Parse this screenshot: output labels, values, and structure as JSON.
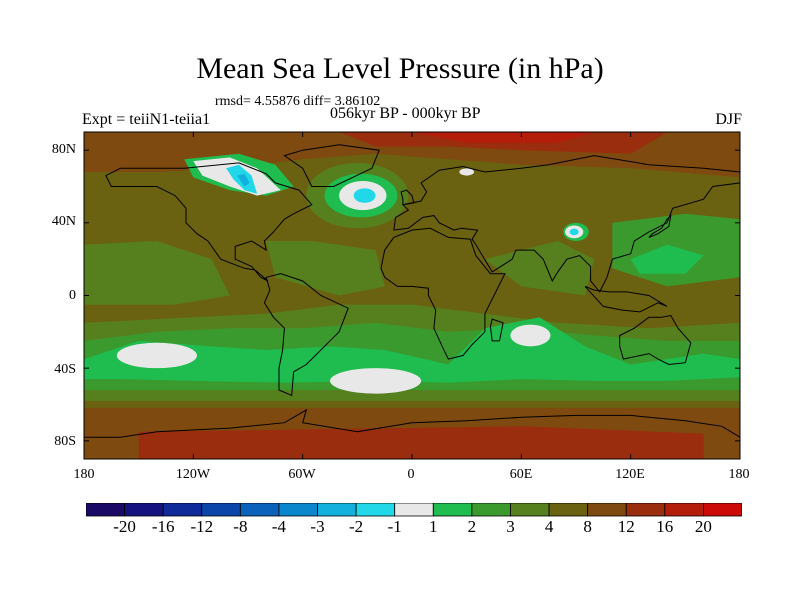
{
  "title": "Mean Sea Level Pressure (in hPa)",
  "stats": "rmsd= 4.55876 diff= 3.86102",
  "experiment": "Expt = teiiN1-teiia1",
  "period": "056kyr BP - 000kyr BP",
  "season": "DJF",
  "lat_labels": [
    "80N",
    "40N",
    "0",
    "40S",
    "80S"
  ],
  "lon_labels": [
    "180",
    "120W",
    "60W",
    "0",
    "60E",
    "120E",
    "180"
  ],
  "colorbar": {
    "labels": [
      "-20",
      "-16",
      "-12",
      "-8",
      "-4",
      "-3",
      "-2",
      "-1",
      "1",
      "2",
      "3",
      "4",
      "8",
      "12",
      "16",
      "20"
    ],
    "colors": [
      "#1a0a66",
      "#15137f",
      "#0f2a99",
      "#0c45aa",
      "#0a62bb",
      "#0a86cc",
      "#14b0dd",
      "#20d8e8",
      "#e8e8e8",
      "#1fbc4f",
      "#3b9a2e",
      "#567f1d",
      "#6b6211",
      "#7f4a0f",
      "#9a2d0d",
      "#b51d0b",
      "#cc0b08"
    ]
  },
  "map_colors": {
    "base": "#6b6211",
    "level3": "#567f1d",
    "level2": "#3b9a2e",
    "level1": "#1fbc4f",
    "neutral": "#e8e8e8",
    "neg1": "#20d8e8",
    "neg2": "#14b0dd",
    "pos12": "#7f4a0f",
    "pos16": "#9a2d0d",
    "pos20": "#b51d0b",
    "coast": "#000000"
  }
}
